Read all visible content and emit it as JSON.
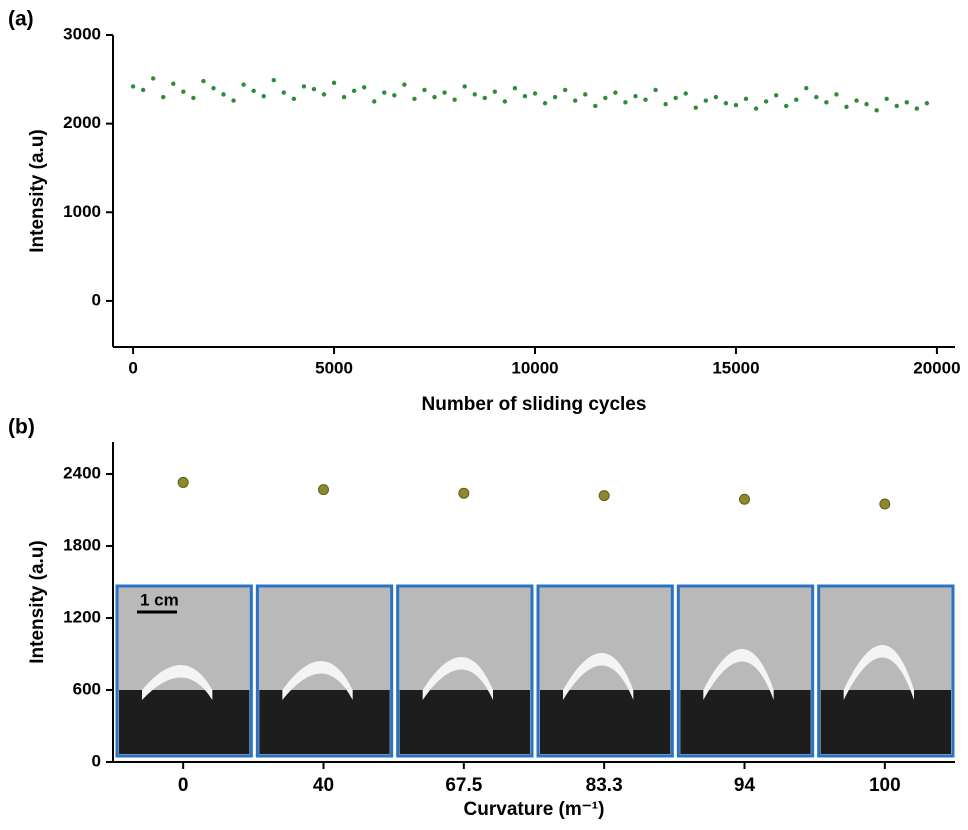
{
  "chart_data": [
    {
      "type": "scatter",
      "panel_label": "(a)",
      "xlabel": "Number of sliding cycles",
      "ylabel": "Intensity (a.u)",
      "color": "#2e8b3a",
      "x": [
        0,
        250,
        500,
        750,
        1000,
        1250,
        1500,
        1750,
        2000,
        2250,
        2500,
        2750,
        3000,
        3250,
        3500,
        3750,
        4000,
        4250,
        4500,
        4750,
        5000,
        5250,
        5500,
        5750,
        6000,
        6250,
        6500,
        6750,
        7000,
        7250,
        7500,
        7750,
        8000,
        8250,
        8500,
        8750,
        9000,
        9250,
        9500,
        9750,
        10000,
        10250,
        10500,
        10750,
        11000,
        11250,
        11500,
        11750,
        12000,
        12250,
        12500,
        12750,
        13000,
        13250,
        13500,
        13750,
        14000,
        14250,
        14500,
        14750,
        15000,
        15250,
        15500,
        15750,
        16000,
        16250,
        16500,
        16750,
        17000,
        17250,
        17500,
        17750,
        18000,
        18250,
        18500,
        18750,
        19000,
        19250,
        19500,
        19750
      ],
      "values": [
        2420,
        2380,
        2510,
        2300,
        2450,
        2360,
        2290,
        2480,
        2400,
        2330,
        2260,
        2440,
        2370,
        2310,
        2490,
        2350,
        2280,
        2420,
        2390,
        2330,
        2460,
        2300,
        2370,
        2410,
        2250,
        2350,
        2320,
        2440,
        2280,
        2380,
        2300,
        2350,
        2270,
        2420,
        2330,
        2290,
        2360,
        2250,
        2400,
        2310,
        2340,
        2230,
        2300,
        2380,
        2260,
        2330,
        2200,
        2290,
        2350,
        2240,
        2310,
        2270,
        2380,
        2220,
        2290,
        2340,
        2180,
        2260,
        2300,
        2230,
        2210,
        2280,
        2170,
        2250,
        2320,
        2200,
        2270,
        2400,
        2300,
        2240,
        2330,
        2190,
        2260,
        2220,
        2150,
        2280,
        2200,
        2240,
        2170,
        2230
      ],
      "xlim": [
        -500,
        20450
      ],
      "xticks": [
        0,
        5000,
        10000,
        15000,
        20000
      ],
      "ylim": [
        -520,
        3000
      ],
      "yticks": [
        0,
        1000,
        2000,
        3000
      ]
    },
    {
      "type": "scatter",
      "panel_label": "(b)",
      "xlabel": "Curvature (m⁻¹)",
      "ylabel": "Intensity (a.u)",
      "color": "#8c8a2c",
      "categories": [
        "0",
        "40",
        "67.5",
        "83.3",
        "94",
        "100"
      ],
      "values": [
        2330,
        2270,
        2240,
        2220,
        2190,
        2150
      ],
      "ylim": [
        0,
        2667
      ],
      "yticks": [
        0,
        600,
        1200,
        1800,
        2400
      ],
      "annotations": [
        "1 cm"
      ]
    }
  ]
}
